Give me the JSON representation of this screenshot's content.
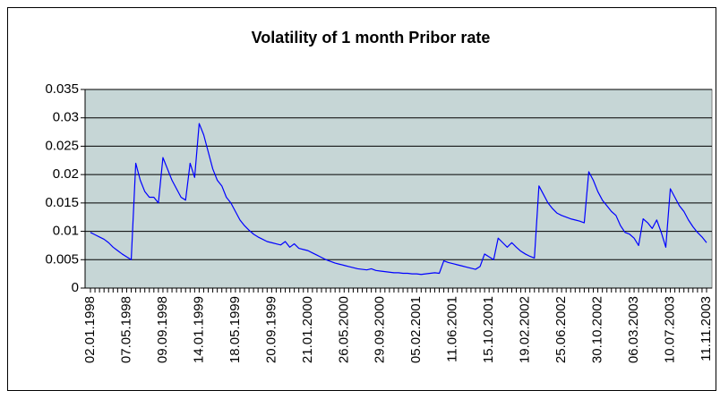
{
  "chart_data": {
    "type": "line",
    "title": "Volatility of 1 month Pribor rate",
    "categories": [
      "02.01.1998",
      null,
      null,
      null,
      null,
      null,
      null,
      null,
      "07.05.1998",
      null,
      null,
      null,
      null,
      null,
      null,
      null,
      "09.09.1998",
      null,
      null,
      null,
      null,
      null,
      null,
      null,
      "14.01.1999",
      null,
      null,
      null,
      null,
      null,
      null,
      null,
      "18.05.1999",
      null,
      null,
      null,
      null,
      null,
      null,
      null,
      "20.09.1999",
      null,
      null,
      null,
      null,
      null,
      null,
      null,
      "21.01.2000",
      null,
      null,
      null,
      null,
      null,
      null,
      null,
      "26.05.2000",
      null,
      null,
      null,
      null,
      null,
      null,
      null,
      "29.09.2000",
      null,
      null,
      null,
      null,
      null,
      null,
      null,
      "05.02.2001",
      null,
      null,
      null,
      null,
      null,
      null,
      null,
      "11.06.2001",
      null,
      null,
      null,
      null,
      null,
      null,
      null,
      "15.10.2001",
      null,
      null,
      null,
      null,
      null,
      null,
      null,
      "19.02.2002",
      null,
      null,
      null,
      null,
      null,
      null,
      null,
      "25.06.2002",
      null,
      null,
      null,
      null,
      null,
      null,
      null,
      "30.10.2002",
      null,
      null,
      null,
      null,
      null,
      null,
      null,
      "06.03.2003",
      null,
      null,
      null,
      null,
      null,
      null,
      null,
      "10.07.2003",
      null,
      null,
      null,
      null,
      null,
      null,
      null,
      "11.11.2003"
    ],
    "series": [
      {
        "name": "Volatility",
        "color": "#0000ff",
        "values": [
          0.0098,
          0.0094,
          0.009,
          0.0086,
          0.008,
          0.0072,
          0.0066,
          0.006,
          0.0055,
          0.005,
          0.022,
          0.019,
          0.017,
          0.016,
          0.016,
          0.015,
          0.023,
          0.021,
          0.019,
          0.0175,
          0.016,
          0.0155,
          0.022,
          0.0195,
          0.029,
          0.027,
          0.024,
          0.021,
          0.019,
          0.018,
          0.016,
          0.015,
          0.0135,
          0.012,
          0.011,
          0.0102,
          0.0095,
          0.009,
          0.0086,
          0.0082,
          0.008,
          0.0078,
          0.0076,
          0.0082,
          0.0072,
          0.0078,
          0.007,
          0.0068,
          0.0066,
          0.0062,
          0.0058,
          0.0054,
          0.005,
          0.0047,
          0.0044,
          0.0042,
          0.004,
          0.0038,
          0.0036,
          0.0034,
          0.0033,
          0.0032,
          0.0034,
          0.0031,
          0.003,
          0.0029,
          0.0028,
          0.0027,
          0.0027,
          0.0026,
          0.0026,
          0.0025,
          0.0025,
          0.0024,
          0.0025,
          0.0026,
          0.0027,
          0.0026,
          0.0048,
          0.0045,
          0.0043,
          0.0041,
          0.0039,
          0.0037,
          0.0035,
          0.0033,
          0.0038,
          0.006,
          0.0055,
          0.005,
          0.0088,
          0.008,
          0.0072,
          0.008,
          0.0072,
          0.0065,
          0.006,
          0.0056,
          0.0053,
          0.018,
          0.0165,
          0.015,
          0.014,
          0.0132,
          0.0128,
          0.0125,
          0.0122,
          0.012,
          0.0118,
          0.0115,
          0.0205,
          0.019,
          0.017,
          0.0155,
          0.0145,
          0.0135,
          0.0128,
          0.011,
          0.0098,
          0.0095,
          0.0088,
          0.0075,
          0.0122,
          0.0115,
          0.0105,
          0.012,
          0.0098,
          0.0072,
          0.0175,
          0.016,
          0.0145,
          0.0135,
          0.012,
          0.0108,
          0.0098,
          0.009,
          0.008
        ]
      }
    ],
    "ylim": [
      0,
      0.035
    ],
    "yticks": [
      0,
      0.005,
      0.01,
      0.015,
      0.02,
      0.025,
      0.03,
      0.035
    ],
    "grid": true
  }
}
